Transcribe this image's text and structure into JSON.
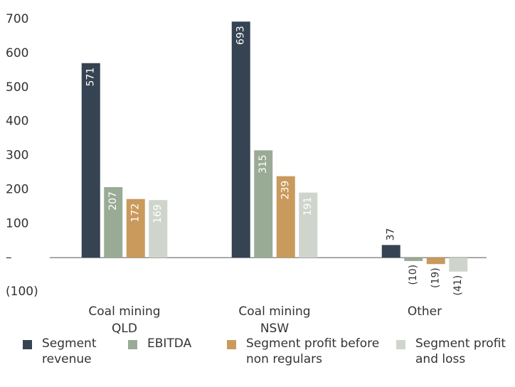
{
  "chart_data": {
    "type": "bar",
    "categories": [
      "Coal mining QLD",
      "Coal mining NSW",
      "Other"
    ],
    "series": [
      {
        "name": "Segment revenue",
        "color": "#364352",
        "values": [
          571,
          693,
          37
        ]
      },
      {
        "name": "EBITDA",
        "color": "#9aab95",
        "values": [
          207,
          315,
          -10
        ],
        "value_labels": [
          "207",
          "315",
          "(10)"
        ]
      },
      {
        "name": "Segment profit before non regulars",
        "color": "#c99a5c",
        "values": [
          172,
          239,
          -19
        ],
        "value_labels": [
          "172",
          "239",
          "(19)"
        ]
      },
      {
        "name": "Segment profit and loss",
        "color": "#cfd5cc",
        "values": [
          169,
          191,
          -41
        ],
        "value_labels": [
          "169",
          "191",
          "(41)"
        ]
      }
    ],
    "ylim": [
      -100,
      700
    ],
    "yticks": [
      {
        "value": -100,
        "label": "(100)"
      },
      {
        "value": 0,
        "label": "–"
      },
      100,
      200,
      300,
      400,
      500,
      600,
      700
    ],
    "legend": "bottom"
  }
}
